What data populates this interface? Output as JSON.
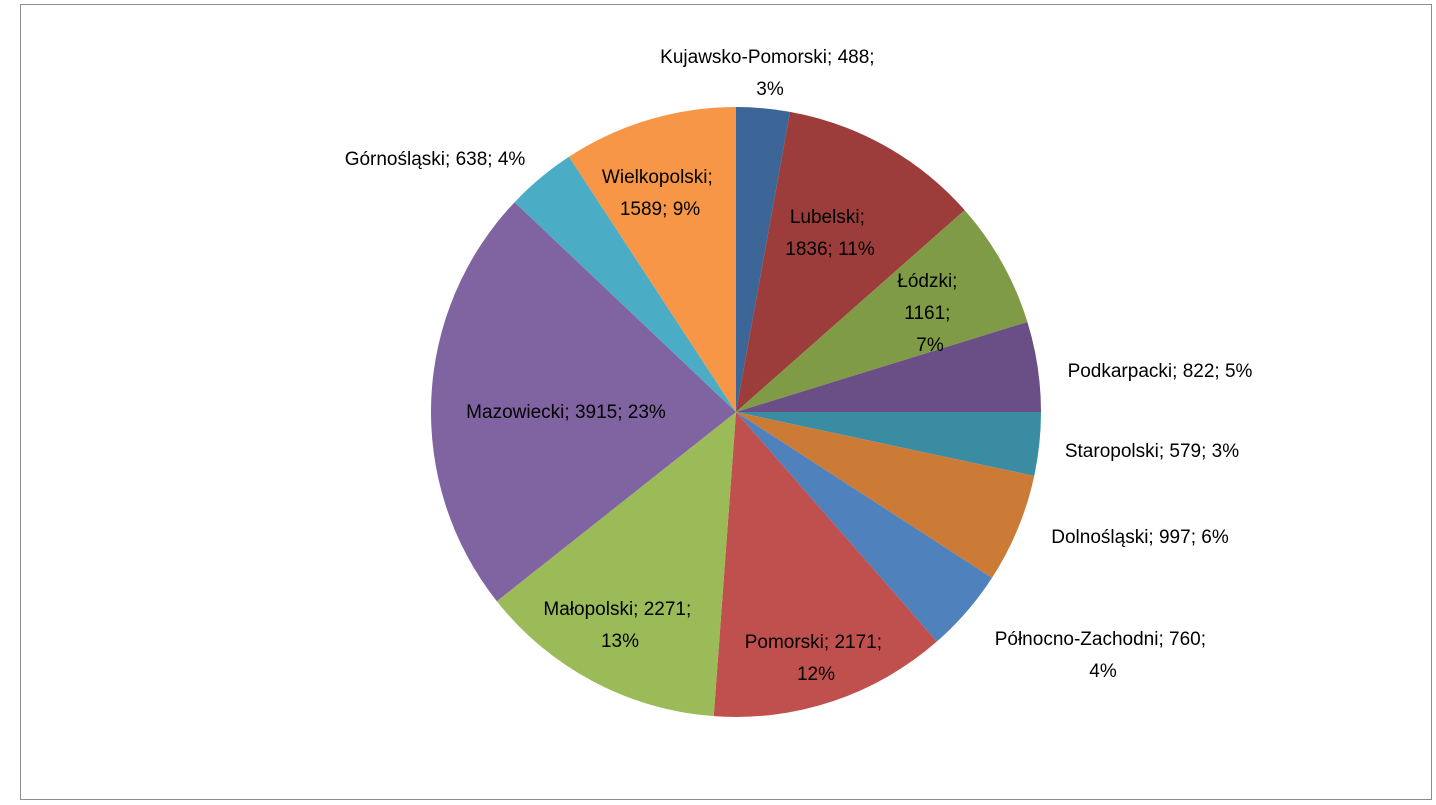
{
  "chart_data": {
    "type": "pie",
    "label_separator": "; ",
    "categories": [
      "Kujawsko-Pomorski",
      "Lubelski",
      "Łódzki",
      "Podkarpacki",
      "Staropolski",
      "Dolnośląski",
      "Północno-Zachodni",
      "Pomorski",
      "Małopolski",
      "Mazowiecki",
      "Górnośląski",
      "Wielkopolski"
    ],
    "values": [
      488,
      1836,
      1161,
      822,
      579,
      997,
      760,
      2171,
      2271,
      3915,
      638,
      1589
    ],
    "percents": [
      {
        "value": 3,
        "label": "3%"
      },
      {
        "value": 11,
        "label": "11%"
      },
      {
        "value": 7,
        "label": "7%"
      },
      {
        "value": 5,
        "label": "5%"
      },
      {
        "value": 3,
        "label": "3%"
      },
      {
        "value": 6,
        "label": "6%"
      },
      {
        "value": 4,
        "label": "4%"
      },
      {
        "value": 12,
        "label": "12%"
      },
      {
        "value": 13,
        "label": "13%"
      },
      {
        "value": 23,
        "label": "23%"
      },
      {
        "value": 4,
        "label": "4%"
      },
      {
        "value": 9,
        "label": "9%"
      }
    ],
    "colors": [
      "#3c6698",
      "#9c3d3b",
      "#7f9b45",
      "#6a4f87",
      "#3a8ca3",
      "#cc7b37",
      "#4f81bd",
      "#c0504d",
      "#9bbb59",
      "#8064a2",
      "#4bacc6",
      "#f79646"
    ]
  }
}
